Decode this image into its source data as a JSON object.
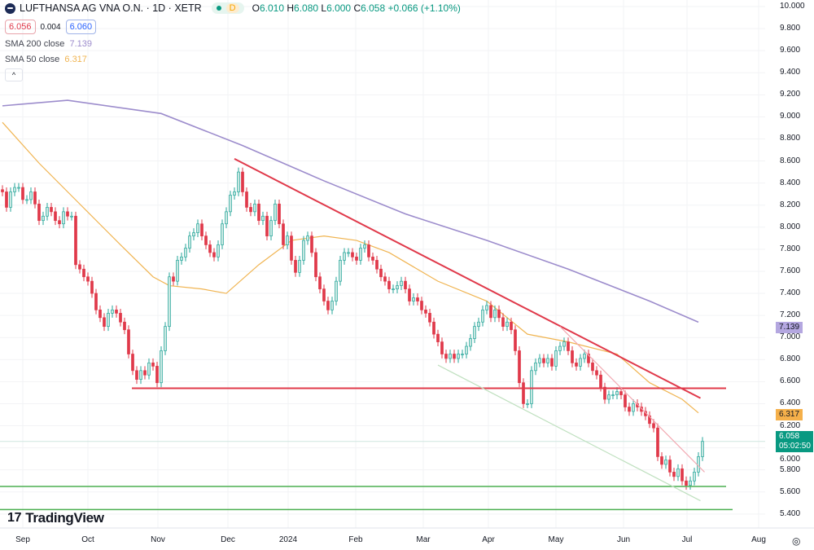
{
  "header": {
    "symbol": "LUFTHANSA AG VNA O.N. · 1D · XETR",
    "market_status": "D",
    "open_label": "O",
    "open": "6.010",
    "high_label": "H",
    "high": "6.080",
    "low_label": "L",
    "low": "6.000",
    "close_label": "C",
    "close": "6.058",
    "change": "+0.066 (+1.10%)",
    "bid": "6.056",
    "spread": "0.004",
    "ask": "6.060"
  },
  "indicators": [
    {
      "label": "SMA 200 close",
      "value": "7.139",
      "color": "#9c8ccc"
    },
    {
      "label": "SMA 50 close",
      "value": "6.317",
      "color": "#f0b451"
    }
  ],
  "collapse_icon": "chevron-up-icon",
  "brand": "TradingView",
  "price_axis": {
    "ticks": [
      "10.000",
      "9.800",
      "9.600",
      "9.400",
      "9.200",
      "9.000",
      "8.800",
      "8.600",
      "8.400",
      "8.200",
      "8.000",
      "7.800",
      "7.600",
      "7.400",
      "7.200",
      "7.000",
      "6.800",
      "6.600",
      "6.400",
      "6.200",
      "6.000",
      "5.800",
      "5.600",
      "5.400"
    ],
    "last_price": "6.058",
    "countdown": "05:02:50"
  },
  "time_axis": {
    "ticks": [
      "Sep",
      "Oct",
      "Nov",
      "Dec",
      "2024",
      "Feb",
      "Mar",
      "Apr",
      "May",
      "Jun",
      "Jul",
      "Aug"
    ]
  },
  "colors": {
    "up": "#26a69a",
    "up_fill": "#c8e8e2",
    "down": "#e0394a",
    "sma200": "#9c8ccc",
    "sma50": "#f0b451",
    "trendline": "#e0394a",
    "support": "#4caf50",
    "last_price": "#089981"
  },
  "chart_data": {
    "type": "candlestick",
    "ylim": [
      5.4,
      10.0
    ],
    "grid": true,
    "closes": [
      8.32,
      8.18,
      8.32,
      8.36,
      8.36,
      8.25,
      8.25,
      8.32,
      8.21,
      8.06,
      8.1,
      8.18,
      8.14,
      8.06,
      8.03,
      8.14,
      8.1,
      8.1,
      7.66,
      7.62,
      7.55,
      7.51,
      7.4,
      7.25,
      7.18,
      7.1,
      7.22,
      7.25,
      7.22,
      7.14,
      7.07,
      6.85,
      6.7,
      6.62,
      6.7,
      6.66,
      6.77,
      6.74,
      6.59,
      6.88,
      7.1,
      7.55,
      7.51,
      7.7,
      7.73,
      7.81,
      7.92,
      7.95,
      8.03,
      7.92,
      7.84,
      7.77,
      7.73,
      7.84,
      8.03,
      8.14,
      8.29,
      8.32,
      8.5,
      8.32,
      8.18,
      8.14,
      8.21,
      8.06,
      8.1,
      7.92,
      8.06,
      8.21,
      8.03,
      7.84,
      7.92,
      7.7,
      7.59,
      7.7,
      7.88,
      7.92,
      7.77,
      7.55,
      7.44,
      7.33,
      7.25,
      7.33,
      7.51,
      7.7,
      7.77,
      7.77,
      7.73,
      7.7,
      7.81,
      7.84,
      7.73,
      7.7,
      7.62,
      7.55,
      7.51,
      7.44,
      7.44,
      7.47,
      7.51,
      7.44,
      7.33,
      7.36,
      7.33,
      7.25,
      7.22,
      7.14,
      7.03,
      6.96,
      6.85,
      6.81,
      6.85,
      6.81,
      6.85,
      6.85,
      6.92,
      6.99,
      7.1,
      7.14,
      7.25,
      7.29,
      7.18,
      7.25,
      7.18,
      7.1,
      7.14,
      7.07,
      6.88,
      6.59,
      6.4,
      6.4,
      6.7,
      6.77,
      6.81,
      6.77,
      6.81,
      6.74,
      6.88,
      6.92,
      6.96,
      6.88,
      6.77,
      6.74,
      6.81,
      6.85,
      6.77,
      6.7,
      6.66,
      6.55,
      6.44,
      6.48,
      6.48,
      6.51,
      6.48,
      6.37,
      6.33,
      6.4,
      6.37,
      6.33,
      6.29,
      6.22,
      6.18,
      5.92,
      5.85,
      5.89,
      5.78,
      5.74,
      5.81,
      5.7,
      5.66,
      5.7,
      5.78,
      5.92,
      6.058
    ],
    "sma200": [
      [
        0,
        9.1
      ],
      [
        16,
        9.15
      ],
      [
        39,
        9.03
      ],
      [
        59,
        8.74
      ],
      [
        79,
        8.42
      ],
      [
        99,
        8.12
      ],
      [
        119,
        7.88
      ],
      [
        139,
        7.62
      ],
      [
        159,
        7.33
      ],
      [
        171,
        7.139
      ]
    ],
    "sma50": [
      [
        0,
        8.95
      ],
      [
        9,
        8.58
      ],
      [
        19,
        8.21
      ],
      [
        29,
        7.84
      ],
      [
        37,
        7.55
      ],
      [
        41,
        7.47
      ],
      [
        49,
        7.44
      ],
      [
        55,
        7.4
      ],
      [
        63,
        7.66
      ],
      [
        71,
        7.88
      ],
      [
        79,
        7.92
      ],
      [
        87,
        7.88
      ],
      [
        95,
        7.77
      ],
      [
        107,
        7.51
      ],
      [
        119,
        7.33
      ],
      [
        129,
        7.03
      ],
      [
        139,
        6.96
      ],
      [
        151,
        6.85
      ],
      [
        159,
        6.59
      ],
      [
        167,
        6.44
      ],
      [
        171,
        6.317
      ]
    ],
    "horizontal_levels": [
      6.54,
      5.65,
      5.44
    ]
  }
}
